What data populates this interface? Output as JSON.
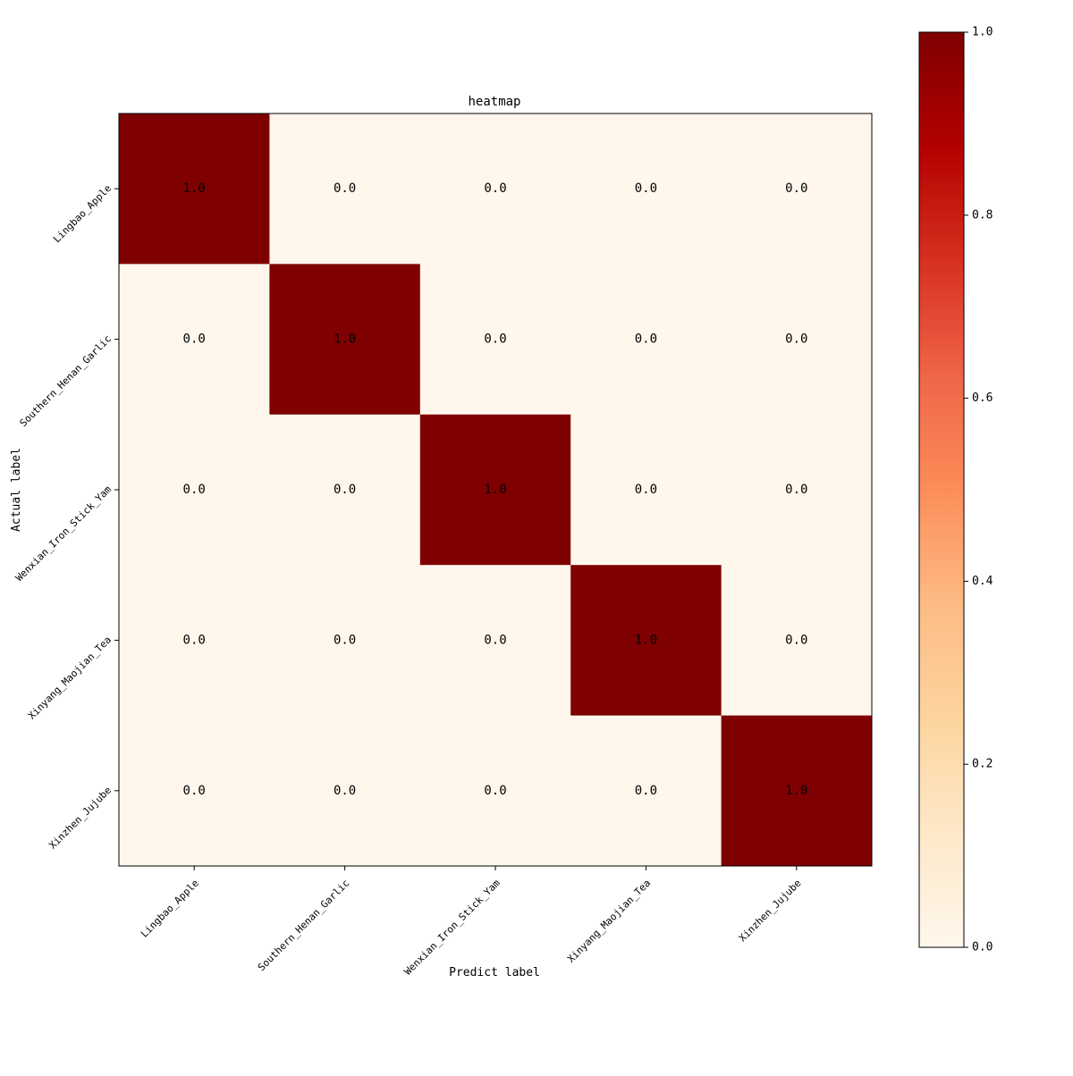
{
  "chart_data": {
    "type": "heatmap",
    "title": "heatmap",
    "xlabel": "Predict label",
    "ylabel": "Actual label",
    "x_categories": [
      "Lingbao_Apple",
      "Southern_Henan_Garlic",
      "Wenxian_Iron_Stick_Yam",
      "Xinyang_Maojian_Tea",
      "Xinzhen_Jujube"
    ],
    "y_categories": [
      "Lingbao_Apple",
      "Southern_Henan_Garlic",
      "Wenxian_Iron_Stick_Yam",
      "Xinyang_Maojian_Tea",
      "Xinzhen_Jujube"
    ],
    "values": [
      [
        1.0,
        0.0,
        0.0,
        0.0,
        0.0
      ],
      [
        0.0,
        1.0,
        0.0,
        0.0,
        0.0
      ],
      [
        0.0,
        0.0,
        1.0,
        0.0,
        0.0
      ],
      [
        0.0,
        0.0,
        0.0,
        1.0,
        0.0
      ],
      [
        0.0,
        0.0,
        0.0,
        0.0,
        1.0
      ]
    ],
    "value_range": [
      0.0,
      1.0
    ],
    "colormap": "OrRd",
    "colorbar_ticks": [
      "0.0",
      "0.2",
      "0.4",
      "0.6",
      "0.8",
      "1.0"
    ],
    "grid": false,
    "legend": "colorbar-right",
    "colors": {
      "low": "#fff7ec",
      "high": "#7f0000",
      "text": "#000000",
      "axis": "#000000"
    }
  }
}
